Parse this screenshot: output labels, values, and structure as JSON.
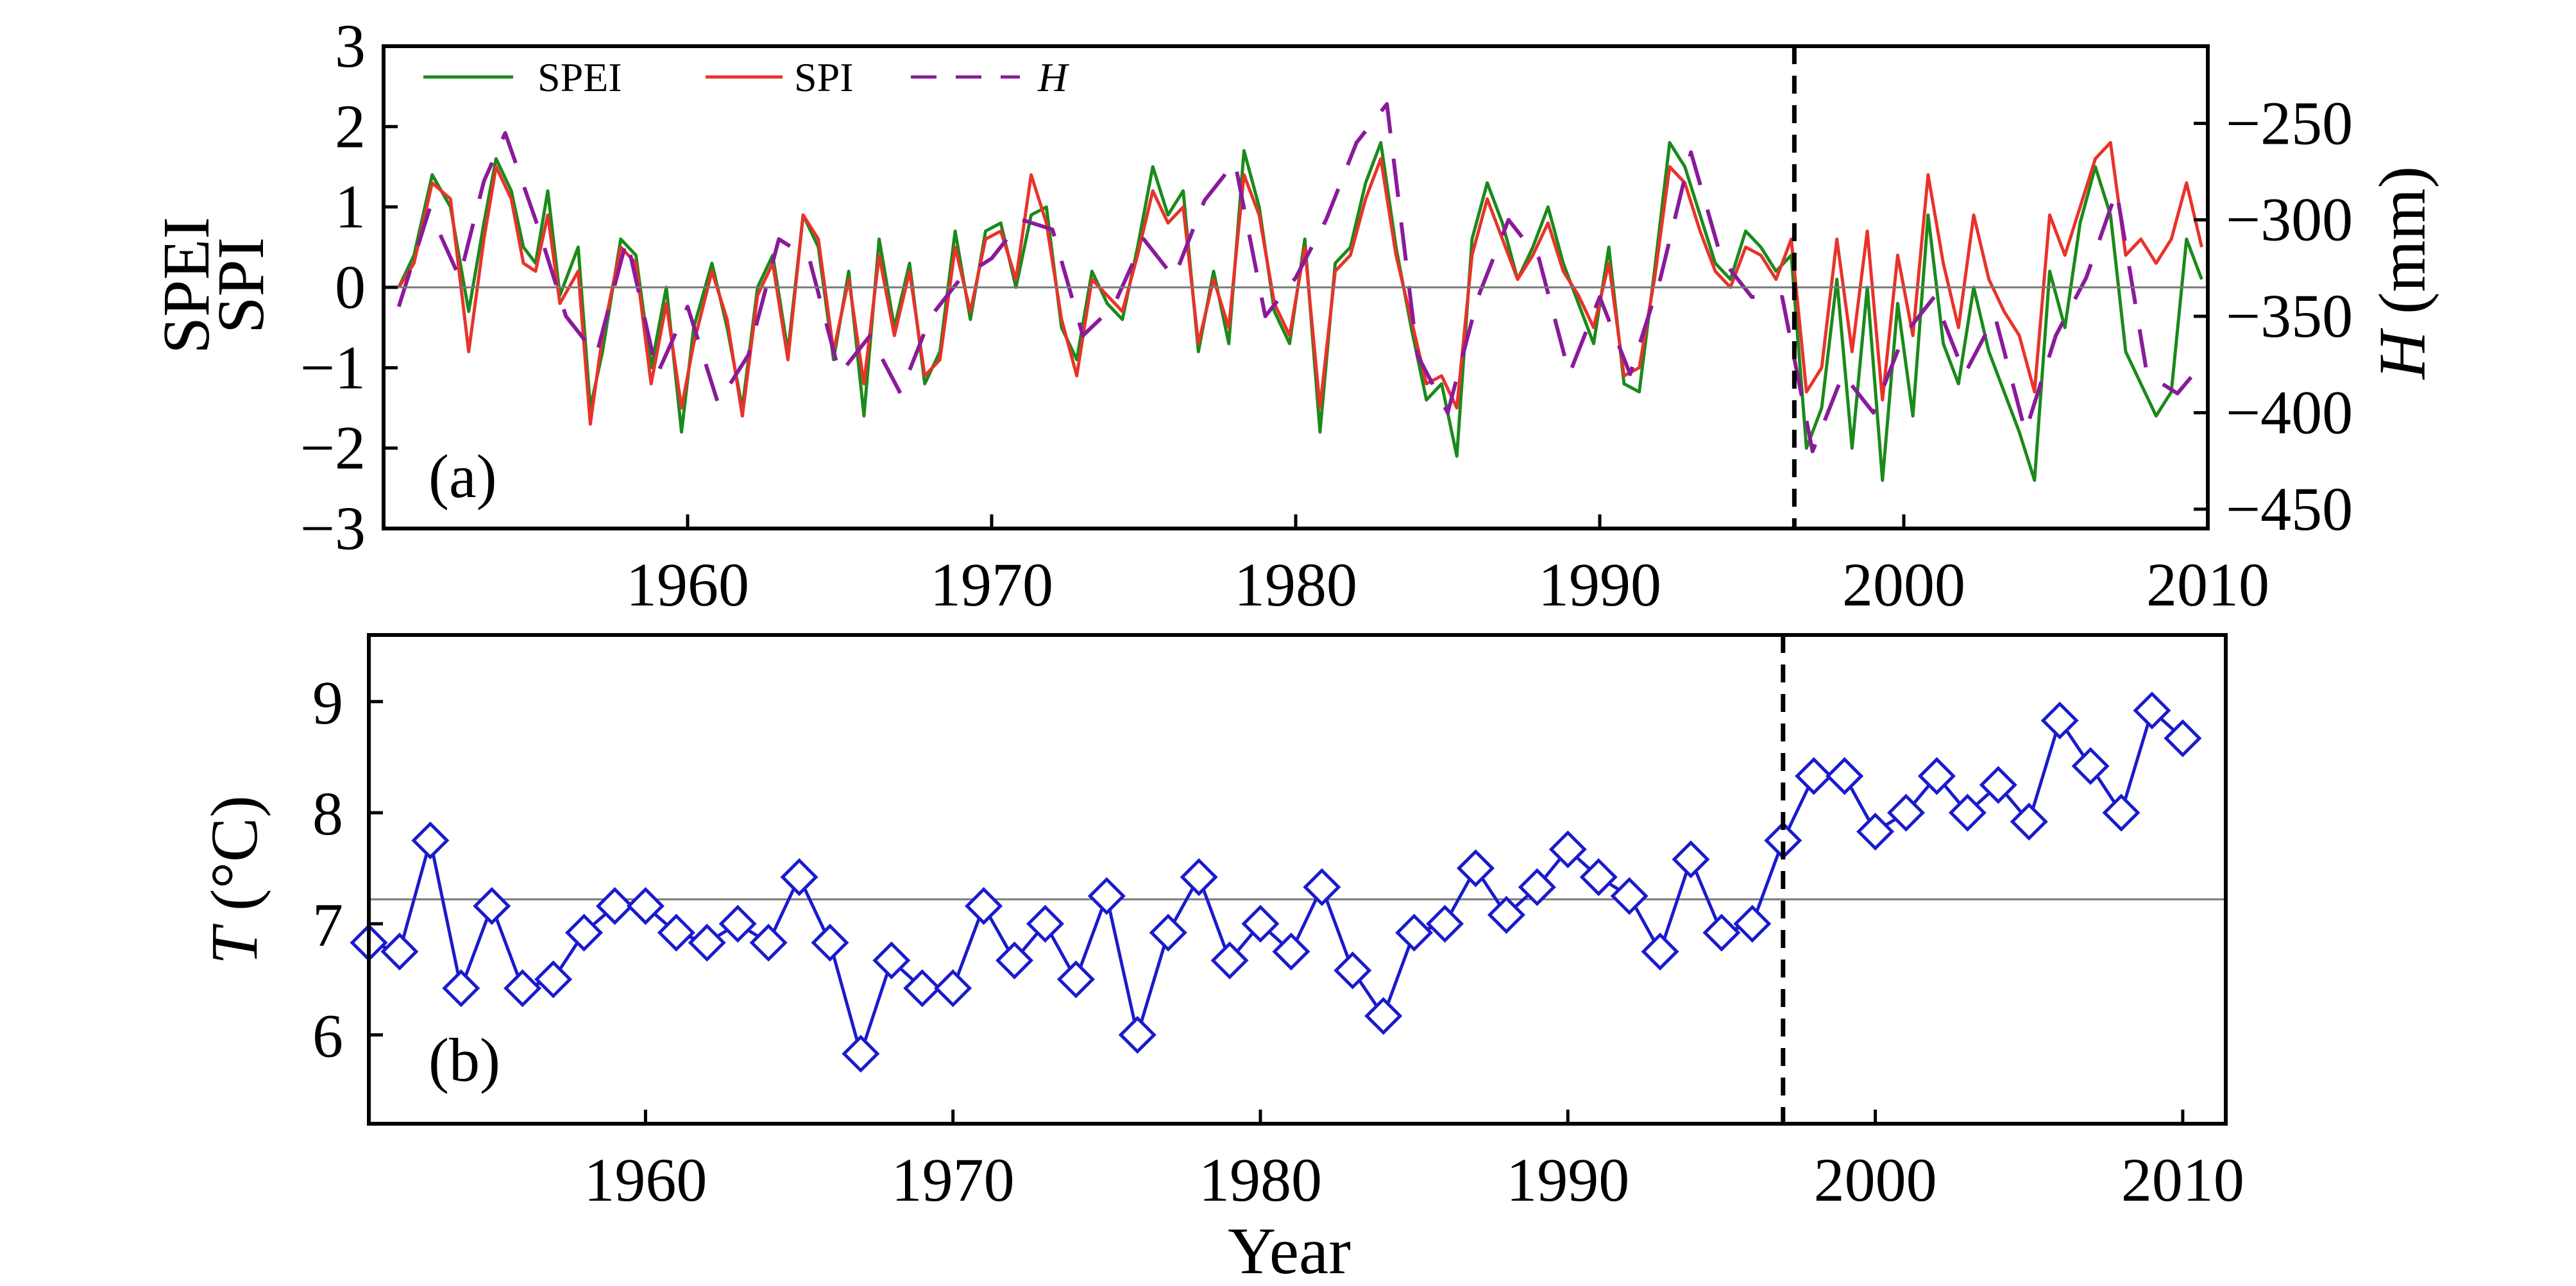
{
  "chart_data": [
    {
      "panel": "(a)",
      "type": "line",
      "ylabel_left": [
        "SPEI",
        "SPI"
      ],
      "ylabel_right": {
        "symbol": "H",
        "unit": " (mm)"
      },
      "xlim": [
        1950,
        2010
      ],
      "ylim_left": [
        -3.0,
        3.0
      ],
      "ylim_right": [
        -460,
        -210
      ],
      "xticks": [
        1960,
        1970,
        1980,
        1990,
        2000,
        2010
      ],
      "yticks_left": [
        3,
        2,
        1,
        0,
        -1,
        -2,
        -3
      ],
      "yticks_right": [
        -250,
        -300,
        -350,
        -400,
        -450
      ],
      "reference_line_y": 0,
      "vline_x": 1996.4,
      "grid": false,
      "legend_position": "top-left",
      "series": [
        {
          "name": "SPEI",
          "axis": "left",
          "color": "#1a8a1a",
          "x": [
            1950.5,
            1951.0,
            1951.6,
            1952.2,
            1952.8,
            1953.3,
            1953.7,
            1954.2,
            1954.6,
            1955.0,
            1955.4,
            1955.8,
            1956.4,
            1956.8,
            1957.2,
            1957.8,
            1958.3,
            1958.8,
            1959.3,
            1959.8,
            1960.2,
            1960.8,
            1961.3,
            1961.8,
            1962.3,
            1962.8,
            1963.3,
            1963.8,
            1964.3,
            1964.8,
            1965.3,
            1965.8,
            1966.3,
            1966.8,
            1967.3,
            1967.8,
            1968.3,
            1968.8,
            1969.3,
            1969.8,
            1970.3,
            1970.8,
            1971.3,
            1971.8,
            1972.3,
            1972.8,
            1973.3,
            1973.8,
            1974.3,
            1974.8,
            1975.3,
            1975.8,
            1976.3,
            1976.8,
            1977.3,
            1977.8,
            1978.3,
            1978.8,
            1979.3,
            1979.8,
            1980.3,
            1980.8,
            1981.3,
            1981.8,
            1982.3,
            1982.8,
            1983.3,
            1983.8,
            1984.3,
            1984.8,
            1985.3,
            1985.8,
            1986.3,
            1986.8,
            1987.3,
            1987.8,
            1988.3,
            1988.8,
            1989.3,
            1989.8,
            1990.3,
            1990.8,
            1991.3,
            1991.8,
            1992.3,
            1992.8,
            1993.3,
            1993.8,
            1994.3,
            1994.8,
            1995.3,
            1995.8,
            1996.3,
            1996.8,
            1997.3,
            1997.8,
            1998.3,
            1998.8,
            1999.3,
            1999.8,
            2000.3,
            2000.8,
            2001.3,
            2001.8,
            2002.3,
            2002.8,
            2003.3,
            2003.8,
            2004.3,
            2004.8,
            2005.3,
            2005.8,
            2006.3,
            2006.8,
            2007.3,
            2007.8,
            2008.3,
            2008.8,
            2009.3,
            2009.8
          ],
          "y": [
            0.0,
            0.4,
            1.4,
            1.0,
            -0.3,
            0.8,
            1.6,
            1.2,
            0.5,
            0.3,
            1.2,
            -0.1,
            0.5,
            -1.5,
            -0.8,
            0.6,
            0.4,
            -1.0,
            0.0,
            -1.8,
            -0.5,
            0.3,
            -0.5,
            -1.5,
            0.0,
            0.4,
            -0.8,
            0.9,
            0.5,
            -0.9,
            0.2,
            -1.6,
            0.6,
            -0.5,
            0.3,
            -1.2,
            -0.8,
            0.7,
            -0.4,
            0.7,
            0.8,
            0.0,
            0.9,
            1.0,
            -0.5,
            -0.9,
            0.2,
            -0.2,
            -0.4,
            0.5,
            1.5,
            0.9,
            1.2,
            -0.8,
            0.2,
            -0.7,
            1.7,
            1.0,
            -0.3,
            -0.7,
            0.6,
            -1.8,
            0.3,
            0.5,
            1.3,
            1.8,
            0.5,
            -0.5,
            -1.4,
            -1.2,
            -2.1,
            0.6,
            1.3,
            0.8,
            0.1,
            0.5,
            1.0,
            0.3,
            -0.2,
            -0.7,
            0.5,
            -1.2,
            -1.3,
            0.2,
            1.8,
            1.5,
            0.9,
            0.3,
            0.1,
            0.7,
            0.5,
            0.2,
            0.4,
            -2.0,
            -1.5,
            0.1,
            -2.0,
            0.0,
            -2.4,
            -0.2,
            -1.6,
            0.9,
            -0.7,
            -1.2,
            0.0,
            -0.8,
            -1.3,
            -1.8,
            -2.4,
            0.2,
            -0.5,
            0.8,
            1.5,
            0.9,
            -0.8,
            -1.2,
            -1.6,
            -1.3,
            0.6,
            0.1
          ]
        },
        {
          "name": "SPI",
          "axis": "left",
          "color": "#e8332a",
          "x": [
            1950.5,
            1951.0,
            1951.6,
            1952.2,
            1952.8,
            1953.3,
            1953.7,
            1954.2,
            1954.6,
            1955.0,
            1955.4,
            1955.8,
            1956.4,
            1956.8,
            1957.2,
            1957.8,
            1958.3,
            1958.8,
            1959.3,
            1959.8,
            1960.2,
            1960.8,
            1961.3,
            1961.8,
            1962.3,
            1962.8,
            1963.3,
            1963.8,
            1964.3,
            1964.8,
            1965.3,
            1965.8,
            1966.3,
            1966.8,
            1967.3,
            1967.8,
            1968.3,
            1968.8,
            1969.3,
            1969.8,
            1970.3,
            1970.8,
            1971.3,
            1971.8,
            1972.3,
            1972.8,
            1973.3,
            1973.8,
            1974.3,
            1974.8,
            1975.3,
            1975.8,
            1976.3,
            1976.8,
            1977.3,
            1977.8,
            1978.3,
            1978.8,
            1979.3,
            1979.8,
            1980.3,
            1980.8,
            1981.3,
            1981.8,
            1982.3,
            1982.8,
            1983.3,
            1983.8,
            1984.3,
            1984.8,
            1985.3,
            1985.8,
            1986.3,
            1986.8,
            1987.3,
            1987.8,
            1988.3,
            1988.8,
            1989.3,
            1989.8,
            1990.3,
            1990.8,
            1991.3,
            1991.8,
            1992.3,
            1992.8,
            1993.3,
            1993.8,
            1994.3,
            1994.8,
            1995.3,
            1995.8,
            1996.3,
            1996.8,
            1997.3,
            1997.8,
            1998.3,
            1998.8,
            1999.3,
            1999.8,
            2000.3,
            2000.8,
            2001.3,
            2001.8,
            2002.3,
            2002.8,
            2003.3,
            2003.8,
            2004.3,
            2004.8,
            2005.3,
            2005.8,
            2006.3,
            2006.8,
            2007.3,
            2007.8,
            2008.3,
            2008.8,
            2009.3,
            2009.8
          ],
          "y": [
            0.0,
            0.3,
            1.3,
            1.1,
            -0.8,
            0.6,
            1.5,
            1.1,
            0.3,
            0.2,
            0.9,
            -0.2,
            0.2,
            -1.7,
            -0.6,
            0.5,
            0.3,
            -1.2,
            -0.2,
            -1.5,
            -0.7,
            0.2,
            -0.4,
            -1.6,
            -0.1,
            0.3,
            -0.9,
            0.9,
            0.6,
            -0.8,
            0.1,
            -1.2,
            0.4,
            -0.6,
            0.2,
            -1.1,
            -0.9,
            0.5,
            -0.3,
            0.6,
            0.7,
            0.1,
            1.4,
            0.8,
            -0.4,
            -1.1,
            0.1,
            -0.1,
            -0.3,
            0.4,
            1.2,
            0.8,
            1.0,
            -0.7,
            0.1,
            -0.5,
            1.4,
            0.9,
            -0.2,
            -0.6,
            0.5,
            -1.5,
            0.2,
            0.4,
            1.1,
            1.6,
            0.4,
            -0.4,
            -1.2,
            -1.1,
            -1.5,
            0.4,
            1.1,
            0.6,
            0.1,
            0.4,
            0.8,
            0.2,
            -0.1,
            -0.5,
            0.3,
            -1.1,
            -1.0,
            0.1,
            1.5,
            1.3,
            0.7,
            0.2,
            0.0,
            0.5,
            0.4,
            0.1,
            0.6,
            -1.3,
            -1.0,
            0.6,
            -0.8,
            0.7,
            -1.4,
            0.4,
            -0.6,
            1.4,
            0.3,
            -0.5,
            0.9,
            0.1,
            -0.3,
            -0.6,
            -1.3,
            0.9,
            0.4,
            1.0,
            1.6,
            1.8,
            0.4,
            0.6,
            0.3,
            0.6,
            1.3,
            0.5
          ]
        },
        {
          "name": "H",
          "axis": "right",
          "color": "#8a1a9b",
          "dashed": true,
          "x": [
            1950.5,
            1951.5,
            1952.5,
            1953.3,
            1954.0,
            1955.0,
            1956.0,
            1957.0,
            1958.0,
            1959.0,
            1960.0,
            1961.0,
            1962.0,
            1963.0,
            1964.0,
            1965.0,
            1966.0,
            1967.0,
            1968.0,
            1969.0,
            1970.0,
            1971.0,
            1972.0,
            1973.0,
            1974.0,
            1975.0,
            1976.0,
            1977.0,
            1978.0,
            1979.0,
            1980.0,
            1981.0,
            1982.0,
            1983.0,
            1984.0,
            1985.0,
            1986.0,
            1987.0,
            1988.0,
            1989.0,
            1990.0,
            1991.0,
            1992.0,
            1993.0,
            1994.0,
            1995.0,
            1996.0,
            1997.0,
            1998.0,
            1999.0,
            2000.0,
            2001.0,
            2002.0,
            2003.0,
            2004.0,
            2005.0,
            2006.0,
            2007.0,
            2008.0,
            2009.0,
            2009.8
          ],
          "y": [
            -345,
            -295,
            -330,
            -280,
            -255,
            -300,
            -350,
            -370,
            -310,
            -380,
            -345,
            -395,
            -370,
            -310,
            -320,
            -380,
            -360,
            -390,
            -350,
            -330,
            -320,
            -300,
            -305,
            -360,
            -345,
            -310,
            -330,
            -290,
            -270,
            -350,
            -330,
            -300,
            -260,
            -240,
            -370,
            -400,
            -340,
            -300,
            -320,
            -380,
            -340,
            -380,
            -330,
            -265,
            -320,
            -340,
            -340,
            -420,
            -380,
            -400,
            -360,
            -340,
            -380,
            -350,
            -410,
            -360,
            -330,
            -285,
            -380,
            -390,
            -375
          ]
        }
      ]
    },
    {
      "panel": "(b)",
      "type": "line",
      "xlabel": "Year",
      "ylabel": {
        "symbol": "T",
        "unit": " (°C)"
      },
      "xlim": [
        1951,
        2011.4
      ],
      "ylim": [
        5.2,
        9.6
      ],
      "xticks": [
        1960,
        1970,
        1980,
        1990,
        2000,
        2010
      ],
      "yticks": [
        9,
        8,
        7,
        6
      ],
      "reference_line_y": 7.22,
      "vline_x": 1997.0,
      "grid": false,
      "marker": "diamond",
      "series": [
        {
          "name": "T",
          "color": "#1a1acc",
          "x": [
            1951,
            1952,
            1953,
            1954,
            1955,
            1956,
            1957,
            1958,
            1959,
            1960,
            1961,
            1962,
            1963,
            1964,
            1965,
            1966,
            1967,
            1968,
            1969,
            1970,
            1971,
            1972,
            1973,
            1974,
            1975,
            1976,
            1977,
            1978,
            1979,
            1980,
            1981,
            1982,
            1983,
            1984,
            1985,
            1986,
            1987,
            1988,
            1989,
            1990,
            1991,
            1992,
            1993,
            1994,
            1995,
            1996,
            1997,
            1998,
            1999,
            2000,
            2001,
            2002,
            2003,
            2004,
            2005,
            2006,
            2007,
            2008,
            2009,
            2010
          ],
          "y": [
            6.83,
            6.75,
            7.75,
            6.42,
            7.16,
            6.42,
            6.5,
            6.92,
            7.16,
            7.16,
            6.92,
            6.83,
            7.0,
            6.83,
            7.42,
            6.83,
            5.83,
            6.67,
            6.42,
            6.42,
            7.16,
            6.67,
            7.0,
            6.5,
            7.25,
            6.0,
            6.92,
            7.42,
            6.67,
            7.0,
            6.75,
            7.33,
            6.58,
            6.17,
            6.92,
            7.0,
            7.5,
            7.08,
            7.33,
            7.67,
            7.42,
            7.25,
            6.75,
            7.58,
            6.92,
            7.0,
            7.75,
            8.33,
            8.33,
            7.83,
            8.0,
            8.33,
            8.0,
            8.25,
            7.92,
            8.83,
            8.42,
            8.0,
            8.92,
            8.67
          ]
        }
      ]
    }
  ],
  "panel_a": {
    "label": "(a)",
    "ylabel_left_1": "SPEI",
    "ylabel_left_2": "SPI",
    "ylabel_right_symbol": "H",
    "ylabel_right_unit": " (mm)",
    "legend": {
      "spei": "SPEI",
      "spi": "SPI",
      "h": "H"
    }
  },
  "panel_b": {
    "label": "(b)",
    "ylabel_symbol": "T",
    "ylabel_unit": " (°C)",
    "xlabel": "Year"
  }
}
